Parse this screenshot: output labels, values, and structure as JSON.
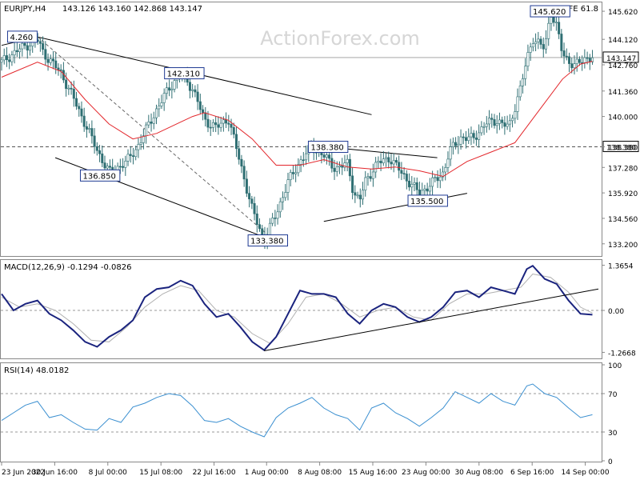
{
  "colors": {
    "background": "#ffffff",
    "candle": "#2f6f73",
    "sma": "#e3262b",
    "macd_line": "#1a237e",
    "macd_signal": "#b0b0b0",
    "rsi_line": "#3a8fd0",
    "trendline": "#000000",
    "level_line": "#555555",
    "label_box": "#1f3a93",
    "watermark": "#d6d6d6"
  },
  "watermark": "ActionForex.com",
  "chart_data": [
    {
      "type": "candlestick",
      "title": "EURJPY,H4",
      "ohlc_text": "143.126 143.160 142.868 143.147",
      "corner_text": "FE 61.8",
      "ylim": [
        132.55,
        146.05
      ],
      "y_ticks": [
        "145.620",
        "144.120",
        "142.760",
        "141.360",
        "140.000",
        "138.380",
        "137.280",
        "135.920",
        "134.560",
        "133.200"
      ],
      "y_tick_values": [
        145.62,
        144.12,
        142.76,
        141.36,
        140.0,
        138.38,
        137.28,
        135.92,
        134.56,
        133.2
      ],
      "last_price": "143.147",
      "last_price_value": 143.147,
      "level_line": "138.380",
      "level_line_value": 138.38,
      "x_range": [
        0,
        100
      ],
      "price_path": [
        [
          0,
          142.9
        ],
        [
          3,
          143.6
        ],
        [
          6,
          144.1
        ],
        [
          7,
          143.4
        ],
        [
          10,
          142.3
        ],
        [
          12,
          141.0
        ],
        [
          14,
          139.6
        ],
        [
          16,
          138.2
        ],
        [
          18,
          137.0
        ],
        [
          21,
          137.6
        ],
        [
          23,
          138.5
        ],
        [
          25,
          139.8
        ],
        [
          28,
          141.5
        ],
        [
          30,
          142.31
        ],
        [
          32,
          141.5
        ],
        [
          34,
          139.8
        ],
        [
          36,
          139.4
        ],
        [
          38,
          139.9
        ],
        [
          40,
          137.5
        ],
        [
          42,
          135.0
        ],
        [
          44,
          133.38
        ],
        [
          46,
          134.8
        ],
        [
          48,
          136.5
        ],
        [
          50,
          137.6
        ],
        [
          52,
          138.38
        ],
        [
          54,
          137.9
        ],
        [
          56,
          137.2
        ],
        [
          58,
          137.5
        ],
        [
          59,
          135.9
        ],
        [
          60,
          135.5
        ],
        [
          61,
          136.6
        ],
        [
          63,
          137.5
        ],
        [
          65,
          137.8
        ],
        [
          66,
          137.4
        ],
        [
          68,
          136.6
        ],
        [
          70,
          135.9
        ],
        [
          72,
          136.4
        ],
        [
          74,
          137.0
        ],
        [
          75,
          138.1
        ],
        [
          77,
          138.9
        ],
        [
          79,
          138.8
        ],
        [
          81,
          139.6
        ],
        [
          83,
          139.8
        ],
        [
          85,
          139.4
        ],
        [
          87,
          141.6
        ],
        [
          88,
          143.0
        ],
        [
          89,
          144.2
        ],
        [
          91,
          143.6
        ],
        [
          92,
          145.62
        ],
        [
          93,
          144.8
        ],
        [
          94,
          143.3
        ],
        [
          96,
          142.7
        ],
        [
          98,
          143.15
        ],
        [
          99,
          143.147
        ]
      ],
      "sma_path": [
        [
          0,
          142.1
        ],
        [
          6,
          142.9
        ],
        [
          10,
          142.4
        ],
        [
          14,
          140.9
        ],
        [
          18,
          139.6
        ],
        [
          22,
          138.8
        ],
        [
          26,
          139.1
        ],
        [
          30,
          139.7
        ],
        [
          32,
          140.0
        ],
        [
          34,
          140.2
        ],
        [
          38,
          139.8
        ],
        [
          42,
          138.8
        ],
        [
          46,
          137.4
        ],
        [
          50,
          137.4
        ],
        [
          54,
          137.7
        ],
        [
          58,
          137.3
        ],
        [
          62,
          137.2
        ],
        [
          66,
          137.3
        ],
        [
          70,
          137.1
        ],
        [
          74,
          136.8
        ],
        [
          78,
          137.6
        ],
        [
          82,
          138.1
        ],
        [
          86,
          138.6
        ],
        [
          90,
          140.3
        ],
        [
          94,
          142.0
        ],
        [
          97,
          142.8
        ],
        [
          99,
          142.95
        ]
      ],
      "trendlines": [
        [
          [
            0,
            143.8
          ],
          [
            6,
            144.25
          ],
          [
            62,
            140.1
          ]
        ],
        [
          [
            9,
            137.8
          ],
          [
            47,
            133.2
          ]
        ],
        [
          [
            6,
            144.26
          ],
          [
            46,
            133.3
          ]
        ],
        [
          [
            52,
            138.45
          ],
          [
            73,
            137.8
          ]
        ],
        [
          [
            54,
            134.4
          ],
          [
            78,
            135.9
          ]
        ]
      ],
      "labels": [
        {
          "text": "4.260",
          "x": 1,
          "y": 144.26
        },
        {
          "text": "142.310",
          "x": 27.3,
          "y": 142.31
        },
        {
          "text": "136.850",
          "x": 13.2,
          "y": 136.85
        },
        {
          "text": "138.380",
          "x": 51.4,
          "y": 138.38
        },
        {
          "text": "135.500",
          "x": 68.1,
          "y": 135.5
        },
        {
          "text": "133.380",
          "x": 41.3,
          "y": 133.38
        },
        {
          "text": "145.620",
          "x": 88.6,
          "y": 145.62
        }
      ]
    },
    {
      "type": "line",
      "title": "MACD(12,26,9) -0.1294 -0.0826",
      "ylim": [
        -1.45,
        1.5
      ],
      "y_ticks": [
        "1.3654",
        "0.00",
        "-1.2668"
      ],
      "y_tick_values": [
        1.3654,
        0.0,
        -1.2668
      ],
      "zero_line": 0,
      "macd_path": [
        [
          0,
          0.5
        ],
        [
          2,
          0.0
        ],
        [
          4,
          0.2
        ],
        [
          6,
          0.3
        ],
        [
          8,
          -0.1
        ],
        [
          10,
          -0.3
        ],
        [
          12,
          -0.6
        ],
        [
          14,
          -0.95
        ],
        [
          16,
          -1.1
        ],
        [
          18,
          -0.8
        ],
        [
          20,
          -0.6
        ],
        [
          22,
          -0.3
        ],
        [
          24,
          0.4
        ],
        [
          26,
          0.65
        ],
        [
          28,
          0.7
        ],
        [
          30,
          0.9
        ],
        [
          32,
          0.75
        ],
        [
          34,
          0.2
        ],
        [
          36,
          -0.2
        ],
        [
          38,
          -0.1
        ],
        [
          40,
          -0.5
        ],
        [
          42,
          -0.95
        ],
        [
          44,
          -1.2
        ],
        [
          46,
          -0.8
        ],
        [
          48,
          -0.1
        ],
        [
          50,
          0.6
        ],
        [
          52,
          0.5
        ],
        [
          54,
          0.5
        ],
        [
          56,
          0.4
        ],
        [
          58,
          -0.1
        ],
        [
          60,
          -0.4
        ],
        [
          62,
          0.0
        ],
        [
          64,
          0.2
        ],
        [
          66,
          0.1
        ],
        [
          68,
          -0.2
        ],
        [
          70,
          -0.35
        ],
        [
          72,
          -0.2
        ],
        [
          74,
          0.1
        ],
        [
          76,
          0.55
        ],
        [
          78,
          0.6
        ],
        [
          80,
          0.4
        ],
        [
          82,
          0.7
        ],
        [
          84,
          0.6
        ],
        [
          86,
          0.5
        ],
        [
          88,
          1.25
        ],
        [
          89,
          1.35
        ],
        [
          91,
          0.95
        ],
        [
          93,
          0.8
        ],
        [
          95,
          0.3
        ],
        [
          97,
          -0.1
        ],
        [
          99,
          -0.13
        ]
      ],
      "signal_path": [
        [
          0,
          0.4
        ],
        [
          3,
          0.1
        ],
        [
          6,
          0.2
        ],
        [
          9,
          0.0
        ],
        [
          12,
          -0.4
        ],
        [
          15,
          -0.9
        ],
        [
          18,
          -0.95
        ],
        [
          21,
          -0.5
        ],
        [
          24,
          0.1
        ],
        [
          27,
          0.5
        ],
        [
          30,
          0.75
        ],
        [
          33,
          0.6
        ],
        [
          36,
          0.0
        ],
        [
          39,
          -0.2
        ],
        [
          42,
          -0.7
        ],
        [
          45,
          -1.0
        ],
        [
          48,
          -0.4
        ],
        [
          51,
          0.4
        ],
        [
          54,
          0.5
        ],
        [
          57,
          0.2
        ],
        [
          60,
          -0.2
        ],
        [
          63,
          0.0
        ],
        [
          66,
          0.1
        ],
        [
          69,
          -0.2
        ],
        [
          72,
          -0.3
        ],
        [
          75,
          0.2
        ],
        [
          78,
          0.5
        ],
        [
          81,
          0.5
        ],
        [
          84,
          0.6
        ],
        [
          87,
          0.7
        ],
        [
          89,
          1.1
        ],
        [
          92,
          1.0
        ],
        [
          95,
          0.55
        ],
        [
          97,
          0.1
        ],
        [
          99,
          -0.08
        ]
      ],
      "trendlines": [
        [
          [
            44,
            -1.22
          ],
          [
            100,
            0.65
          ]
        ]
      ]
    },
    {
      "type": "line",
      "title": "RSI(14) 48.0182",
      "ylim": [
        0,
        100
      ],
      "y_ticks": [
        "100",
        "70",
        "30",
        "0"
      ],
      "y_tick_values": [
        100,
        70,
        30,
        0
      ],
      "guide_lines": [
        70,
        30
      ],
      "rsi_path": [
        [
          0,
          42
        ],
        [
          2,
          50
        ],
        [
          4,
          58
        ],
        [
          6,
          62
        ],
        [
          8,
          45
        ],
        [
          10,
          48
        ],
        [
          12,
          40
        ],
        [
          14,
          33
        ],
        [
          16,
          32
        ],
        [
          18,
          44
        ],
        [
          20,
          40
        ],
        [
          22,
          56
        ],
        [
          24,
          60
        ],
        [
          26,
          66
        ],
        [
          28,
          70
        ],
        [
          30,
          68
        ],
        [
          32,
          57
        ],
        [
          34,
          42
        ],
        [
          36,
          40
        ],
        [
          38,
          44
        ],
        [
          40,
          36
        ],
        [
          42,
          30
        ],
        [
          44,
          25
        ],
        [
          46,
          45
        ],
        [
          48,
          55
        ],
        [
          50,
          60
        ],
        [
          52,
          66
        ],
        [
          54,
          55
        ],
        [
          56,
          48
        ],
        [
          58,
          44
        ],
        [
          60,
          32
        ],
        [
          62,
          55
        ],
        [
          64,
          60
        ],
        [
          66,
          50
        ],
        [
          68,
          44
        ],
        [
          70,
          36
        ],
        [
          72,
          45
        ],
        [
          74,
          55
        ],
        [
          76,
          72
        ],
        [
          78,
          66
        ],
        [
          80,
          60
        ],
        [
          82,
          70
        ],
        [
          84,
          62
        ],
        [
          86,
          58
        ],
        [
          88,
          78
        ],
        [
          89,
          80
        ],
        [
          91,
          70
        ],
        [
          93,
          66
        ],
        [
          95,
          55
        ],
        [
          97,
          45
        ],
        [
          99,
          48
        ]
      ]
    }
  ],
  "x_axis": {
    "labels": [
      "23 Jun 2022",
      "30 Jun 16:00",
      "8 Jul 00:00",
      "15 Jul 08:00",
      "22 Jul 16:00",
      "1 Aug 00:00",
      "8 Aug 08:00",
      "15 Aug 16:00",
      "23 Aug 00:00",
      "30 Aug 08:00",
      "6 Sep 16:00",
      "14 Sep 00:00"
    ],
    "values": [
      0,
      8.9,
      17.8,
      26.7,
      35.6,
      44.4,
      53.3,
      62.2,
      71.1,
      80.0,
      88.9,
      97.8
    ]
  }
}
